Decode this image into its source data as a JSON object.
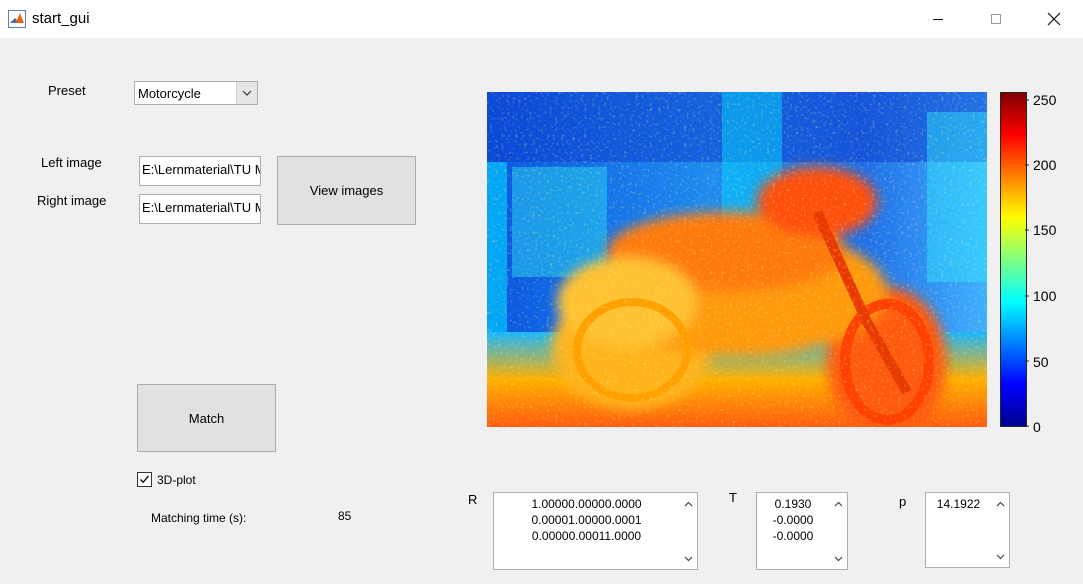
{
  "window": {
    "title": "start_gui"
  },
  "controls": {
    "preset_label": "Preset",
    "preset_value": "Motorcycle",
    "left_image_label": "Left image",
    "left_image_value": "E:\\Lernmaterial\\TU M",
    "right_image_label": "Right image",
    "right_image_value": "E:\\Lernmaterial\\TU M",
    "view_images_label": "View images",
    "match_label": "Match",
    "plot3d_label": "3D-plot",
    "plot3d_checked": true,
    "matching_time_label": "Matching time (s):",
    "matching_time_value": "85"
  },
  "results": {
    "R_label": "R",
    "R_lines": [
      "1.00000.00000.0000",
      "0.00001.00000.0001",
      "0.00000.00011.0000"
    ],
    "T_label": "T",
    "T_lines": [
      "0.1930",
      "-0.0000",
      "-0.0000"
    ],
    "p_label": "p",
    "p_lines": [
      "14.1922"
    ]
  },
  "colorbar": {
    "colormap": "jet",
    "ticks": [
      "250",
      "200",
      "150",
      "100",
      "50",
      "0"
    ],
    "range": [
      0,
      256
    ]
  },
  "colors": {
    "background": "#f0f0f0",
    "button": "#e1e1e1",
    "border": "#adadad"
  },
  "icons": {
    "app": "matlab-icon",
    "minimize": "minimize-icon",
    "maximize": "maximize-icon",
    "close": "close-icon",
    "dropdown": "chevron-down-icon",
    "scroll_up": "chevron-up-icon",
    "scroll_down": "chevron-down-icon",
    "check": "checkmark-icon"
  }
}
